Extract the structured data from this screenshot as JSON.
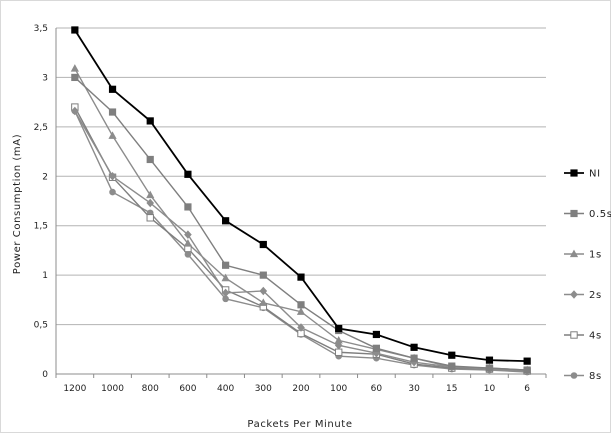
{
  "chart_data": {
    "type": "line",
    "xlabel": "Packets Per Minute",
    "ylabel": "Power Consumption (mA)",
    "categories": [
      "1200",
      "1000",
      "800",
      "600",
      "400",
      "300",
      "200",
      "100",
      "60",
      "30",
      "15",
      "10",
      "6"
    ],
    "ylim": [
      0,
      3.5
    ],
    "yticks": [
      0,
      0.5,
      1,
      1.5,
      2,
      2.5,
      3,
      3.5
    ],
    "ytick_labels": [
      "0",
      "0,5",
      "1",
      "1,5",
      "2",
      "2,5",
      "3",
      "3,5"
    ],
    "grid": "horizontal",
    "legend_position": "right",
    "series": [
      {
        "name": "NI",
        "color": "#000000",
        "marker": "square-filled",
        "values": [
          3.48,
          2.88,
          2.56,
          2.02,
          1.55,
          1.31,
          0.98,
          0.46,
          0.4,
          0.27,
          0.19,
          0.14,
          0.13
        ]
      },
      {
        "name": "0.5s",
        "color": "#7f7f7f",
        "marker": "square-filled",
        "values": [
          3.0,
          2.65,
          2.17,
          1.69,
          1.1,
          1.0,
          0.7,
          0.44,
          0.26,
          0.16,
          0.08,
          0.06,
          0.04
        ]
      },
      {
        "name": "1s",
        "color": "#8c8c8c",
        "marker": "triangle",
        "values": [
          3.09,
          2.41,
          1.81,
          1.32,
          0.97,
          0.72,
          0.63,
          0.34,
          0.25,
          0.16,
          0.07,
          0.06,
          0.04
        ]
      },
      {
        "name": "2s",
        "color": "#8c8c8c",
        "marker": "diamond",
        "values": [
          2.66,
          2.0,
          1.73,
          1.41,
          0.82,
          0.84,
          0.47,
          0.29,
          0.21,
          0.12,
          0.07,
          0.05,
          0.03
        ]
      },
      {
        "name": "4s",
        "color": "#7f7f7f",
        "marker": "square-open",
        "values": [
          2.7,
          1.99,
          1.58,
          1.27,
          0.85,
          0.68,
          0.41,
          0.22,
          0.2,
          0.1,
          0.06,
          0.05,
          0.03
        ]
      },
      {
        "name": "8s",
        "color": "#8c8c8c",
        "marker": "circle",
        "values": [
          2.66,
          1.84,
          1.63,
          1.21,
          0.76,
          0.67,
          0.4,
          0.18,
          0.16,
          0.09,
          0.05,
          0.04,
          0.02
        ]
      }
    ]
  }
}
